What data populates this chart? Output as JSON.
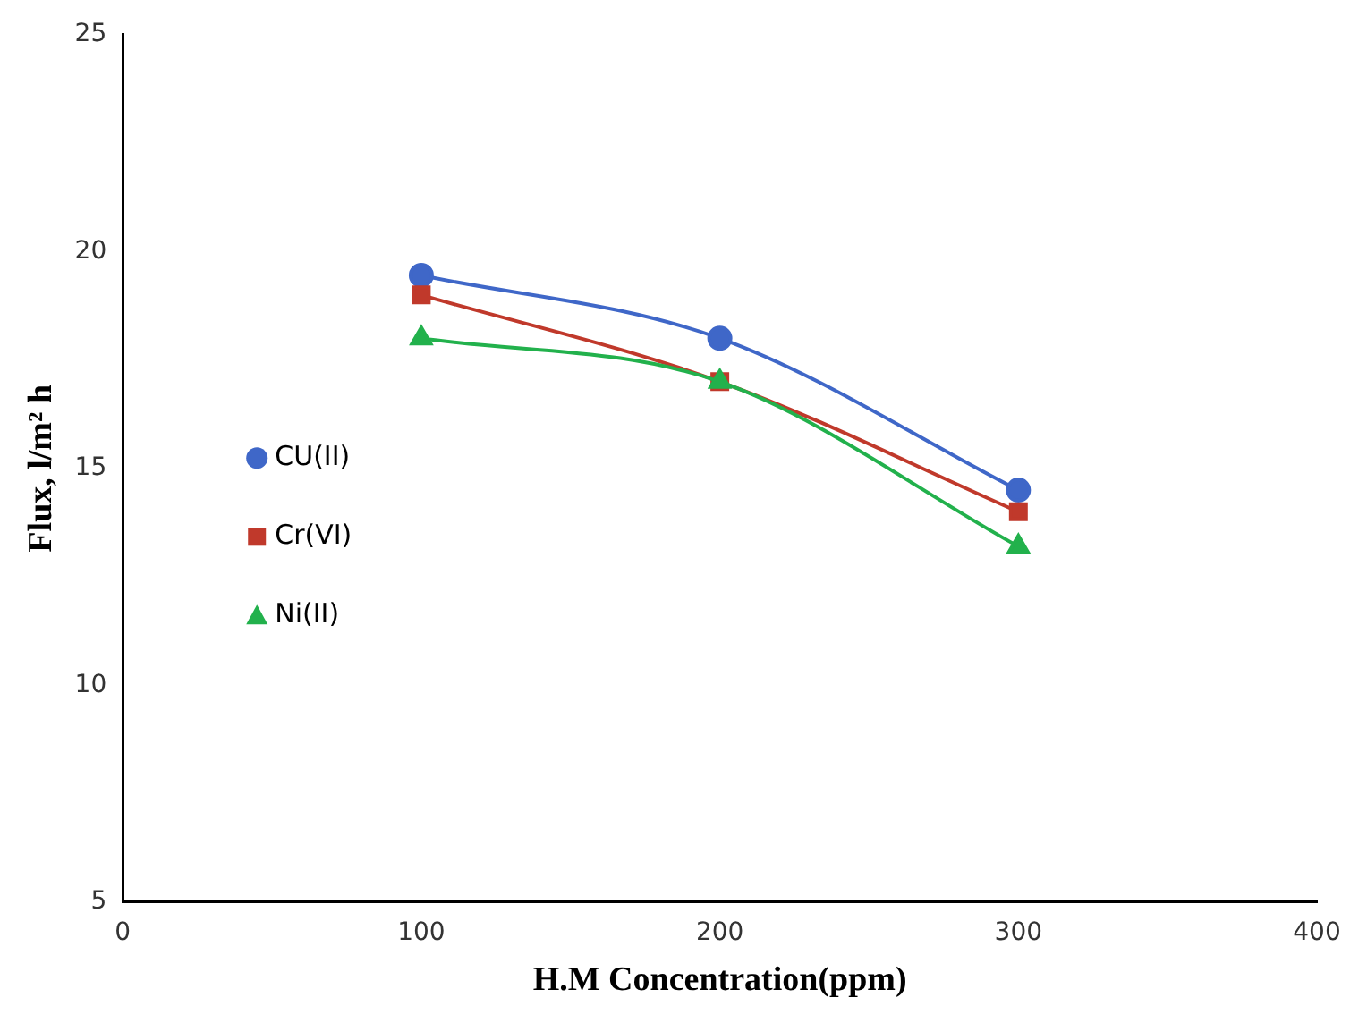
{
  "chart_data": {
    "type": "line",
    "xlabel": "H.M Concentration(ppm)",
    "ylabel": "Flux, l/m² h",
    "x": [
      100,
      200,
      300
    ],
    "series": [
      {
        "name": "CU(II)",
        "color": "#3f67c8",
        "marker": "circle",
        "values": [
          19.45,
          18,
          14.5
        ]
      },
      {
        "name": "Cr(VI)",
        "color": "#c0392b",
        "marker": "square",
        "values": [
          19,
          17,
          14
        ]
      },
      {
        "name": "Ni(II)",
        "color": "#22b14c",
        "marker": "triangle",
        "values": [
          18,
          17,
          13.2
        ]
      }
    ],
    "xlim": [
      0,
      400
    ],
    "xticks": [
      0,
      100,
      200,
      300,
      400
    ],
    "ylim": [
      5,
      25
    ],
    "yticks": [
      5,
      10,
      15,
      20,
      25
    ],
    "grid": false,
    "legend": "left"
  }
}
